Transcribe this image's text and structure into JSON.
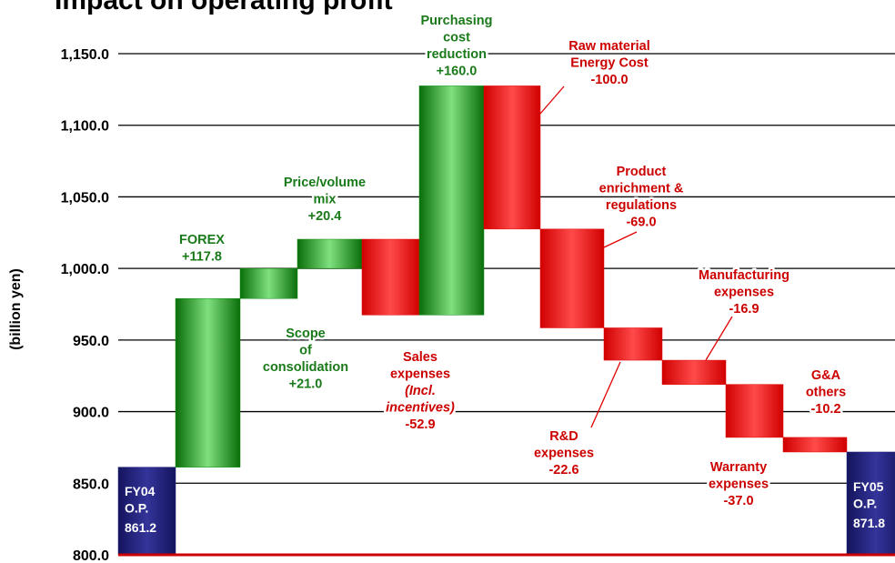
{
  "chart_data": {
    "type": "waterfall",
    "title": "Impact on operating profit",
    "y_label": "(billion yen)",
    "ylim": [
      800,
      1150
    ],
    "yticks": [
      {
        "value": 800,
        "label": "800.0"
      },
      {
        "value": 850,
        "label": "850.0"
      },
      {
        "value": 900,
        "label": "900.0"
      },
      {
        "value": 950,
        "label": "950.0"
      },
      {
        "value": 1000,
        "label": "1,000.0"
      },
      {
        "value": 1050,
        "label": "1,050.0"
      },
      {
        "value": 1100,
        "label": "1,100.0"
      },
      {
        "value": 1150,
        "label": "1,150.0"
      }
    ],
    "grid": true,
    "categories": [
      [
        "FY04",
        "O.P."
      ],
      [
        "FOREX"
      ],
      [
        "Scope",
        "of",
        "consolidation"
      ],
      [
        "Price/volume",
        "mix"
      ],
      [
        "Sales",
        "expenses",
        "(Incl.",
        "incentives)"
      ],
      [
        "Purchasing",
        "cost",
        "reduction"
      ],
      [
        "Raw material",
        "Energy Cost"
      ],
      [
        "Product",
        "enrichment &",
        "regulations"
      ],
      [
        "R&D",
        "expenses"
      ],
      [
        "Manufacturing",
        "expenses"
      ],
      [
        "Warranty",
        "expenses"
      ],
      [
        "G&A",
        "others"
      ],
      [
        "FY05",
        "O.P."
      ]
    ],
    "measure": [
      "total",
      "relative",
      "relative",
      "relative",
      "relative",
      "relative",
      "relative",
      "relative",
      "relative",
      "relative",
      "relative",
      "relative",
      "total"
    ],
    "values": [
      861.2,
      117.8,
      21.0,
      20.4,
      -52.9,
      160.0,
      -100.0,
      -69.0,
      -22.6,
      -16.9,
      -37.0,
      -10.2,
      871.8
    ],
    "value_labels": [
      "861.2",
      "+117.8",
      "+21.0",
      "+20.4",
      "-52.9",
      "+160.0",
      "-100.0",
      "-69.0",
      "-22.6",
      "-16.9",
      "-37.0",
      "-10.2",
      "871.8"
    ],
    "colors": {
      "total": "#1e1e78",
      "increase": "#0c8c0c",
      "decrease": "#e00000"
    },
    "baseline_color": "#cc0000"
  }
}
